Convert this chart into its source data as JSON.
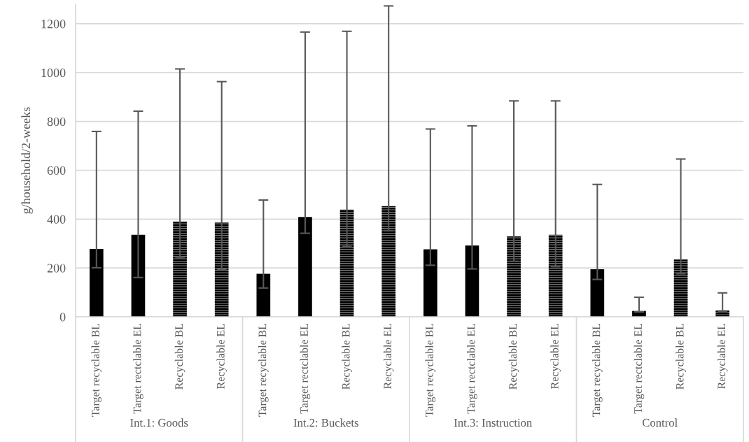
{
  "chart_data": {
    "type": "bar",
    "ylabel": "g/household/2-weeks",
    "categories": [
      "Target recyclable BL",
      "Target rectclable EL",
      "Recyclable BL",
      "Recyclable EL",
      "Target recyclable BL",
      "Target rectclable EL",
      "Recyclable BL",
      "Recyclable EL",
      "Target recyclable BL",
      "Target rectclable EL",
      "Recyclable BL",
      "Recyclable EL",
      "Target recyclable BL",
      "Target rectclable EL",
      "Recyclable BL",
      "Recyclable EL"
    ],
    "series": [
      {
        "color": "#000000",
        "values": [
          278,
          336,
          null,
          null,
          176,
          409,
          null,
          null,
          276,
          292,
          null,
          null,
          195,
          24,
          null,
          null
        ],
        "errors": [
          [
            201,
            759
          ],
          [
            161,
            842
          ],
          null,
          null,
          [
            118,
            478
          ],
          [
            342,
            1166
          ],
          null,
          null,
          [
            211,
            769
          ],
          [
            196,
            782
          ],
          null,
          null,
          [
            153,
            542
          ],
          [
            20,
            80
          ],
          null,
          null
        ]
      },
      {
        "color": "#000000",
        "values": [
          null,
          null,
          390,
          386,
          null,
          null,
          439,
          453,
          null,
          null,
          329,
          336,
          null,
          null,
          235,
          26
        ],
        "errors": [
          null,
          null,
          [
            241,
            1015
          ],
          [
            194,
            963
          ],
          null,
          null,
          [
            288,
            1169
          ],
          [
            353,
            1273
          ],
          null,
          null,
          [
            227,
            884
          ],
          [
            205,
            884
          ],
          null,
          null,
          [
            176,
            646
          ],
          [
            20,
            98
          ]
        ]
      }
    ],
    "annotations": [
      "Int.1: Goods",
      "Int.2: Buckets",
      "Int.3: Instruction",
      "Control"
    ],
    "ylim": [
      0,
      1280
    ],
    "yticks": [
      0,
      200,
      400,
      600,
      800,
      1000,
      1200
    ],
    "grid": "y",
    "legend": false
  }
}
